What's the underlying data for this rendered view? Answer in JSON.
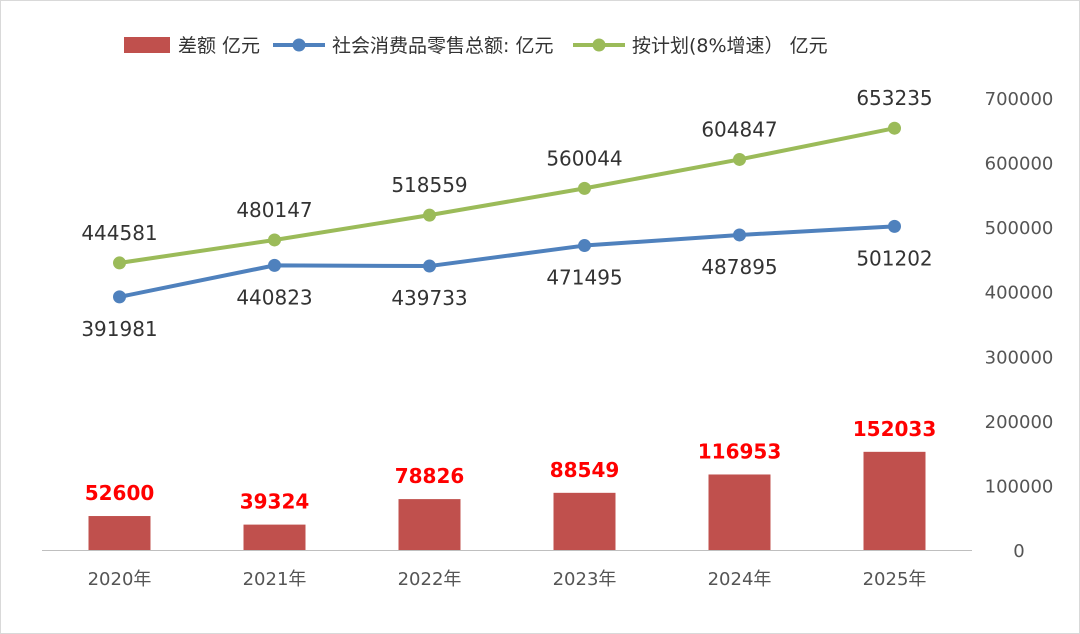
{
  "chart_data": {
    "type": "bar",
    "categories": [
      "2020年",
      "2021年",
      "2022年",
      "2023年",
      "2024年",
      "2025年"
    ],
    "ylim": [
      0,
      700000
    ],
    "y_ticks": [
      "700000",
      "600000",
      "500000",
      "400000",
      "300000",
      "200000",
      "100000",
      "0"
    ],
    "y_axis_position": "right",
    "grid": false,
    "legend_position": "top",
    "series": [
      {
        "name": "差额 亿元",
        "type": "bar",
        "color": "#c0504d",
        "label_color": "#ff0000",
        "values": [
          52600,
          39324,
          78826,
          88549,
          116953,
          152033
        ]
      },
      {
        "name": "社会消费品零售总额: 亿元",
        "type": "line",
        "color": "#4f81bd",
        "values": [
          391981,
          440823,
          439733,
          471495,
          487895,
          501202
        ]
      },
      {
        "name": "按计划(8%增速） 亿元",
        "type": "line",
        "color": "#9bbb59",
        "values": [
          444581,
          480147,
          518559,
          560044,
          604847,
          653235
        ]
      }
    ]
  }
}
